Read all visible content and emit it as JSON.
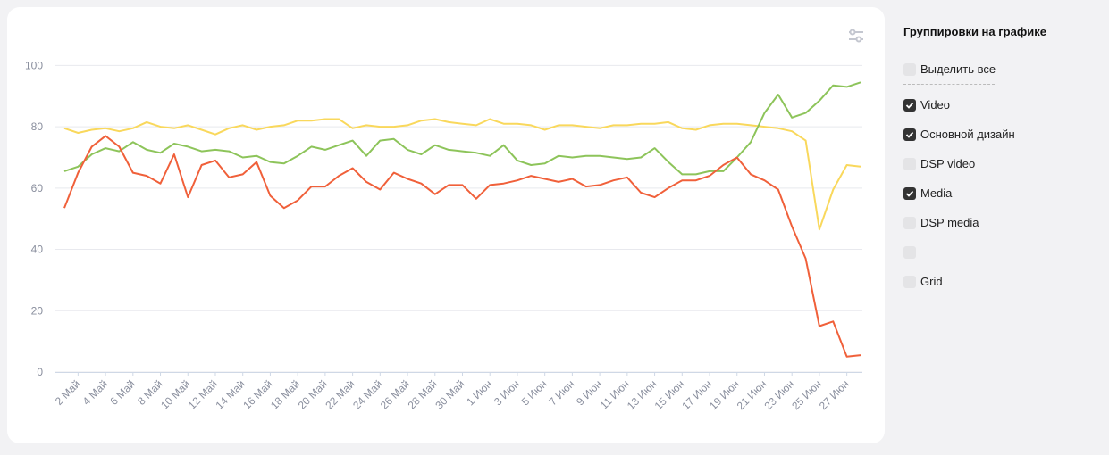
{
  "chart_data": {
    "type": "line",
    "categories": [
      null,
      "2 Май",
      null,
      "4 Май",
      null,
      "6 Май",
      null,
      "8 Май",
      null,
      "10 Май",
      null,
      "12 Май",
      null,
      "14 Май",
      null,
      "16 Май",
      null,
      "18 Май",
      null,
      "20 Май",
      null,
      "22 Май",
      null,
      "24 Май",
      null,
      "26 Май",
      null,
      "28 Май",
      null,
      "30 Май",
      null,
      "1 Июн",
      null,
      "3 Июн",
      null,
      "5 Июн",
      null,
      "7 Июн",
      null,
      "9 Июн",
      null,
      "11 Июн",
      null,
      "13 Июн",
      null,
      "15 Июн",
      null,
      "17 Июн",
      null,
      "19 Июн",
      null,
      "21 Июн",
      null,
      "23 Июн",
      null,
      "25 Июн",
      null,
      "27 Июн",
      null
    ],
    "series": [
      {
        "color": "#f9d85c",
        "values": [
          79.5,
          78,
          79,
          79.5,
          78.5,
          79.5,
          81.5,
          80,
          79.5,
          80.5,
          79,
          77.5,
          79.5,
          80.5,
          79,
          80,
          80.5,
          82,
          82,
          82.5,
          82.5,
          79.5,
          80.5,
          80,
          80,
          80.5,
          82,
          82.5,
          81.5,
          81,
          80.5,
          82.5,
          81,
          81,
          80.5,
          79,
          80.5,
          80.5,
          80,
          79.5,
          80.5,
          80.5,
          81,
          81,
          81.5,
          79.5,
          79,
          80.5,
          81,
          81,
          80.5,
          80,
          79.5,
          78.5,
          75.5,
          46.5,
          59.5,
          67.5,
          67
        ]
      },
      {
        "color": "#8dc45a",
        "values": [
          65.5,
          67,
          71,
          73,
          72,
          75,
          72.5,
          71.5,
          74.5,
          73.5,
          72,
          72.5,
          72,
          70,
          70.5,
          68.5,
          68,
          70.5,
          73.5,
          72.5,
          74,
          75.5,
          70.5,
          75.5,
          76,
          72.5,
          71,
          74,
          72.5,
          72,
          71.5,
          70.5,
          74,
          69,
          67.5,
          68,
          70.5,
          70,
          70.5,
          70.5,
          70,
          69.5,
          70,
          73,
          68.5,
          64.5,
          64.5,
          65.5,
          65.5,
          70,
          75,
          84.5,
          90.5,
          83,
          84.5,
          88.5,
          93.5,
          93,
          94.5
        ]
      },
      {
        "color": "#f0603a",
        "values": [
          53.5,
          65,
          73.5,
          77,
          73.5,
          65,
          64,
          61.5,
          71,
          57,
          67.5,
          69,
          63.5,
          64.5,
          68.5,
          57.5,
          53.5,
          56,
          60.5,
          60.5,
          64,
          66.5,
          62,
          59.5,
          65,
          63,
          61.5,
          58,
          61,
          61,
          56.5,
          61,
          61.5,
          62.5,
          64,
          63,
          62,
          63,
          60.5,
          61,
          62.5,
          63.5,
          58.5,
          57,
          60,
          62.5,
          62.5,
          64,
          67.5,
          70,
          64.5,
          62.5,
          59.5,
          47.5,
          37,
          15,
          16.5,
          5,
          5.5
        ]
      }
    ],
    "ylim": [
      0,
      110
    ],
    "yticks": [
      0,
      20,
      40,
      60,
      80,
      100
    ],
    "grid": true
  },
  "sidebar": {
    "title": "Группировки на графике",
    "items": [
      {
        "label": "Выделить все",
        "checked": false
      },
      {
        "label": "Video",
        "checked": true
      },
      {
        "label": "Основной дизайн",
        "checked": true
      },
      {
        "label": "DSP video",
        "checked": false
      },
      {
        "label": "Media",
        "checked": true
      },
      {
        "label": "DSP media",
        "checked": false
      },
      {
        "checked": false
      },
      {
        "label": "Grid",
        "checked": false
      }
    ]
  }
}
